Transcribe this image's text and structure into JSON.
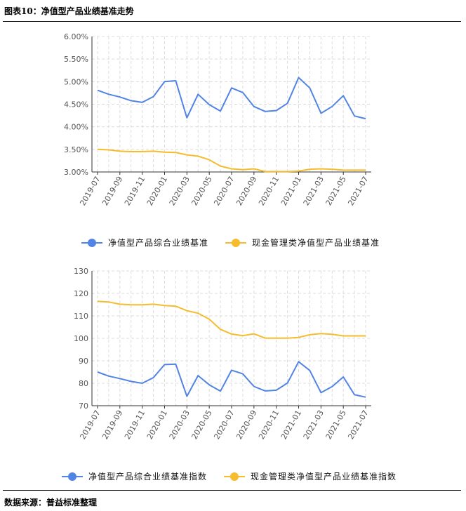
{
  "header": {
    "title": "图表10：净值型产品业绩基准走势"
  },
  "footer": {
    "source": "数据来源：普益标准整理"
  },
  "chart_data": [
    {
      "type": "line",
      "categories": [
        "2019-07",
        "2019-08",
        "2019-09",
        "2019-10",
        "2019-11",
        "2019-12",
        "2020-01",
        "2020-02",
        "2020-03",
        "2020-04",
        "2020-05",
        "2020-06",
        "2020-07",
        "2020-08",
        "2020-09",
        "2020-10",
        "2020-11",
        "2020-12",
        "2021-01",
        "2021-02",
        "2021-03",
        "2021-04",
        "2021-05",
        "2021-06",
        "2021-07"
      ],
      "x_tick_labels": [
        "2019-07",
        "2019-09",
        "2019-11",
        "2020-01",
        "2020-03",
        "2020-05",
        "2020-07",
        "2020-09",
        "2020-11",
        "2021-01",
        "2021-03",
        "2021-05",
        "2021-07"
      ],
      "y_tick_labels": [
        "3.00%",
        "3.50%",
        "4.00%",
        "4.50%",
        "5.00%",
        "5.50%",
        "6.00%"
      ],
      "ylim": [
        3.0,
        6.0
      ],
      "y_unit": "%",
      "grid": true,
      "legend_position": "bottom",
      "series": [
        {
          "name": "净值型产品综合业绩基准",
          "color": "#5284e5",
          "values": [
            4.81,
            4.72,
            4.66,
            4.58,
            4.54,
            4.67,
            5.0,
            5.02,
            4.2,
            4.72,
            4.49,
            4.35,
            4.86,
            4.76,
            4.45,
            4.34,
            4.36,
            4.52,
            5.09,
            4.86,
            4.3,
            4.45,
            4.69,
            4.24,
            4.18
          ]
        },
        {
          "name": "现金管理类净值型产品业绩基准",
          "color": "#f5bd2e",
          "values": [
            3.5,
            3.49,
            3.46,
            3.45,
            3.45,
            3.46,
            3.44,
            3.43,
            3.38,
            3.35,
            3.27,
            3.13,
            3.07,
            3.05,
            3.07,
            3.01,
            3.01,
            3.01,
            3.02,
            3.06,
            3.07,
            3.06,
            3.04,
            3.04,
            3.04
          ]
        }
      ]
    },
    {
      "type": "line",
      "categories": [
        "2019-07",
        "2019-08",
        "2019-09",
        "2019-10",
        "2019-11",
        "2019-12",
        "2020-01",
        "2020-02",
        "2020-03",
        "2020-04",
        "2020-05",
        "2020-06",
        "2020-07",
        "2020-08",
        "2020-09",
        "2020-10",
        "2020-11",
        "2020-12",
        "2021-01",
        "2021-02",
        "2021-03",
        "2021-04",
        "2021-05",
        "2021-06",
        "2021-07"
      ],
      "x_tick_labels": [
        "2019-07",
        "2019-09",
        "2019-11",
        "2020-01",
        "2020-03",
        "2020-05",
        "2020-07",
        "2020-09",
        "2020-11",
        "2021-01",
        "2021-03",
        "2021-05",
        "2021-07"
      ],
      "y_tick_labels": [
        "70",
        "80",
        "90",
        "100",
        "110",
        "120",
        "130"
      ],
      "ylim": [
        70,
        130
      ],
      "grid": true,
      "legend_position": "bottom",
      "series": [
        {
          "name": "净值型产品综合业绩基准指数",
          "color": "#5284e5",
          "values": [
            85.0,
            83.2,
            82.1,
            80.8,
            80.0,
            82.5,
            88.3,
            88.5,
            74.2,
            83.4,
            79.3,
            76.5,
            85.8,
            84.2,
            78.6,
            76.6,
            76.9,
            80.1,
            89.6,
            85.7,
            75.8,
            78.5,
            82.8,
            74.9,
            73.8
          ]
        },
        {
          "name": "现金管理类净值型产品业绩基准指数",
          "color": "#f5bd2e",
          "values": [
            116.5,
            116.2,
            115.2,
            114.9,
            114.9,
            115.2,
            114.6,
            114.3,
            112.3,
            111.2,
            108.5,
            104.0,
            101.9,
            101.2,
            102.0,
            100.1,
            100.1,
            100.1,
            100.4,
            101.6,
            102.1,
            101.8,
            101.1,
            101.1,
            101.1
          ]
        }
      ]
    }
  ]
}
